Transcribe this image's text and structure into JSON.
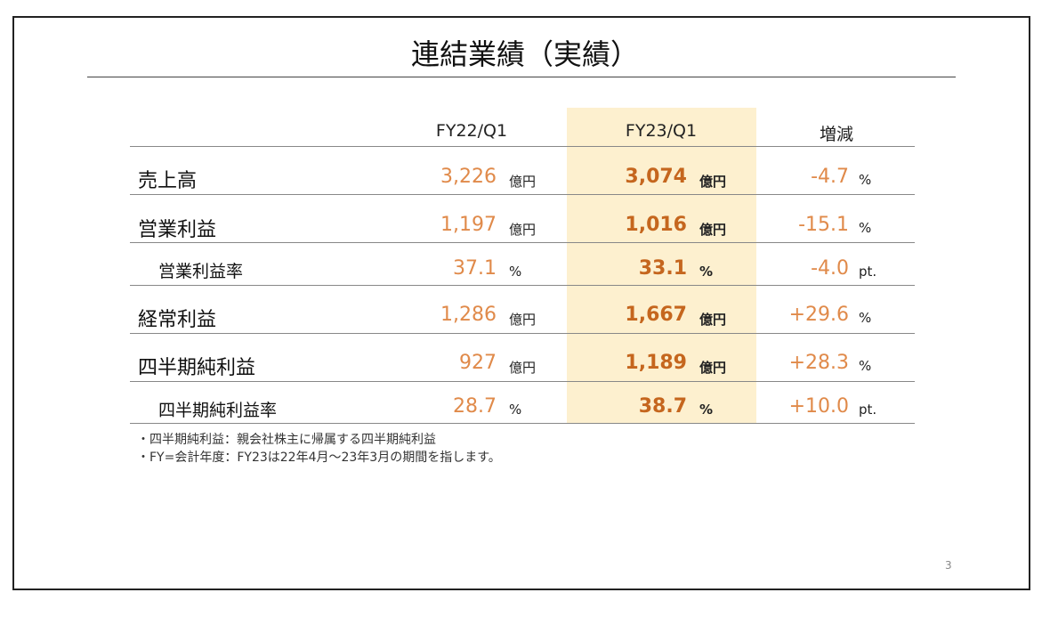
{
  "title": "連結業績（実績）",
  "columns": {
    "prev": "FY22/Q1",
    "curr": "FY23/Q1",
    "change": "増減"
  },
  "rows": [
    {
      "label": "売上高",
      "prev": "3,226",
      "prev_unit": "億円",
      "curr": "3,074",
      "curr_unit": "億円",
      "change": "-4.7",
      "change_unit": "%"
    },
    {
      "label": "営業利益",
      "prev": "1,197",
      "prev_unit": "億円",
      "curr": "1,016",
      "curr_unit": "億円",
      "change": "-15.1",
      "change_unit": "%"
    },
    {
      "label": "営業利益率",
      "prev": "37.1",
      "prev_unit": "%",
      "curr": "33.1",
      "curr_unit": "%",
      "change": "-4.0",
      "change_unit": "pt."
    },
    {
      "label": "経常利益",
      "prev": "1,286",
      "prev_unit": "億円",
      "curr": "1,667",
      "curr_unit": "億円",
      "change": "+29.6",
      "change_unit": "%"
    },
    {
      "label": "四半期純利益",
      "prev": "927",
      "prev_unit": "億円",
      "curr": "1,189",
      "curr_unit": "億円",
      "change": "+28.3",
      "change_unit": "%"
    },
    {
      "label": "四半期純利益率",
      "prev": "28.7",
      "prev_unit": "%",
      "curr": "38.7",
      "curr_unit": "%",
      "change": "+10.0",
      "change_unit": "pt."
    }
  ],
  "notes": [
    "・四半期純利益：親会社株主に帰属する四半期純利益",
    "・FY=会計年度：FY23は22年4月～23年3月の期間を指します。"
  ],
  "page_number": "3",
  "colors": {
    "highlight": "#fdf0cf",
    "prev_value": "#e08a4a",
    "curr_value": "#c5661e"
  }
}
